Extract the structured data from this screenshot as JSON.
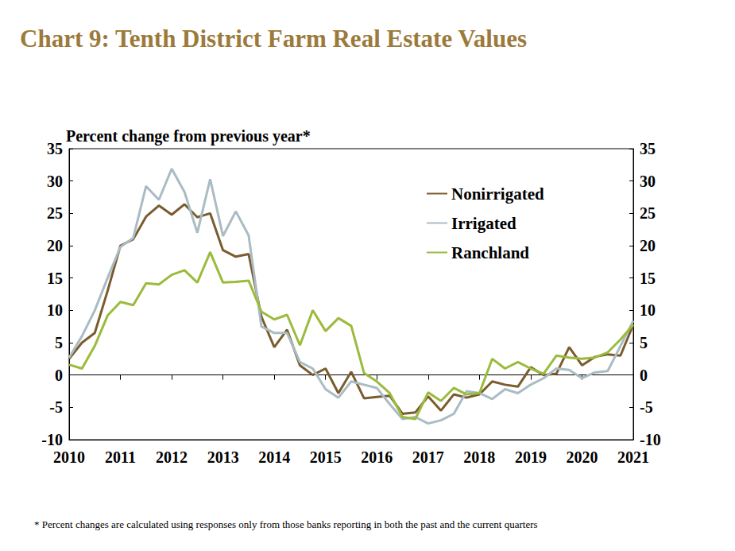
{
  "chart_data": {
    "type": "line",
    "title": "Chart 9: Tenth District Farm Real Estate Values",
    "y_label": "Percent change from previous year*",
    "note": "* Percent changes are calculated using responses only from those banks reporting in both the past and the current quarters",
    "categories": [
      "2010",
      null,
      null,
      null,
      "2011",
      null,
      null,
      null,
      "2012",
      null,
      null,
      null,
      "2013",
      null,
      null,
      null,
      "2014",
      null,
      null,
      null,
      "2015",
      null,
      null,
      null,
      "2016",
      null,
      null,
      null,
      "2017",
      null,
      null,
      null,
      "2018",
      null,
      null,
      null,
      "2019",
      null,
      null,
      null,
      "2020",
      null,
      null,
      null,
      "2021"
    ],
    "series": [
      {
        "name": "Nonirrigated",
        "color": "#7a5c2e",
        "values": [
          2.5,
          5,
          6.5,
          13,
          20,
          21,
          24.5,
          26.2,
          24.8,
          26.4,
          24.4,
          25,
          19.3,
          18.3,
          18.7,
          9,
          4.3,
          7,
          1.5,
          0,
          1,
          -2.8,
          0.5,
          -3.6,
          -3.4,
          -3.2,
          -6,
          -5.8,
          -3.3,
          -5.5,
          -3,
          -3.5,
          -3,
          -1,
          -1.5,
          -1.8,
          1.2,
          0,
          0.2,
          4.3,
          1.5,
          2.8,
          3.2,
          3,
          7.8
        ]
      },
      {
        "name": "Irrigated",
        "color": "#a9bcc4",
        "values": [
          2.7,
          6,
          10,
          15,
          19.8,
          21.2,
          29.2,
          27.1,
          31.9,
          28.3,
          22,
          30.3,
          21.5,
          25.3,
          21.6,
          7.5,
          6.5,
          6.5,
          2,
          1,
          -2.2,
          -3.5,
          -1,
          -1.5,
          -2,
          -4.5,
          -6.8,
          -6.5,
          -7.5,
          -7,
          -6,
          -2.5,
          -2.8,
          -3.7,
          -2.2,
          -2.8,
          -1.5,
          -0.5,
          1,
          0.8,
          -0.5,
          0.4,
          0.6,
          4.5,
          8.4
        ]
      },
      {
        "name": "Ranchland",
        "color": "#9bbb3c",
        "values": [
          1.6,
          1,
          4.5,
          9.2,
          11.3,
          10.8,
          14.2,
          14,
          15.5,
          16.2,
          14.3,
          19,
          14.3,
          14.4,
          14.6,
          9.8,
          8.6,
          9.3,
          4.6,
          10,
          6.8,
          8.8,
          7.6,
          0.3,
          -1,
          -2.8,
          -6.5,
          -6.8,
          -2.7,
          -4,
          -2,
          -3,
          -2.8,
          2.5,
          1,
          2,
          1,
          0.2,
          3,
          2.7,
          2.5,
          2.7,
          3.5,
          5.5,
          7.8
        ]
      }
    ],
    "ylim": [
      -10,
      35
    ],
    "yticks": [
      -10,
      -5,
      0,
      5,
      10,
      15,
      20,
      25,
      30,
      35
    ],
    "y2lim": [
      -10,
      35
    ],
    "y2ticks": [
      -10,
      -5,
      0,
      5,
      10,
      15,
      20,
      25,
      30,
      35
    ],
    "grid": false,
    "legend": "upper right"
  }
}
